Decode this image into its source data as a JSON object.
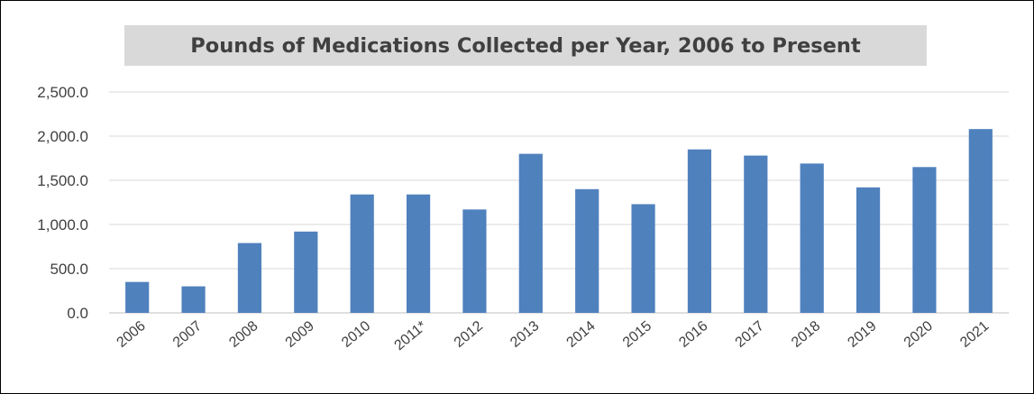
{
  "chart_data": {
    "type": "bar",
    "title": "Pounds of Medications Collected per Year, 2006 to Present",
    "categories": [
      "2006",
      "2007",
      "2008",
      "2009",
      "2010",
      "2011*",
      "2012",
      "2013",
      "2014",
      "2015",
      "2016",
      "2017",
      "2018",
      "2019",
      "2020",
      "2021"
    ],
    "values": [
      350,
      300,
      790,
      920,
      1340,
      1340,
      1170,
      1800,
      1400,
      1230,
      1850,
      1780,
      1690,
      1420,
      1650,
      2080
    ],
    "yticks": [
      "0.0",
      "500.0",
      "1,000.0",
      "1,500.0",
      "2,000.0",
      "2,500.0"
    ],
    "ylim": [
      0,
      2500
    ],
    "xlabel": "",
    "ylabel": "",
    "grid": true,
    "legend": "none",
    "colors": {
      "bar": "#4f81bd",
      "grid": "#d9d9d9",
      "title_bg": "#d9d9d9",
      "text": "#404040"
    }
  }
}
